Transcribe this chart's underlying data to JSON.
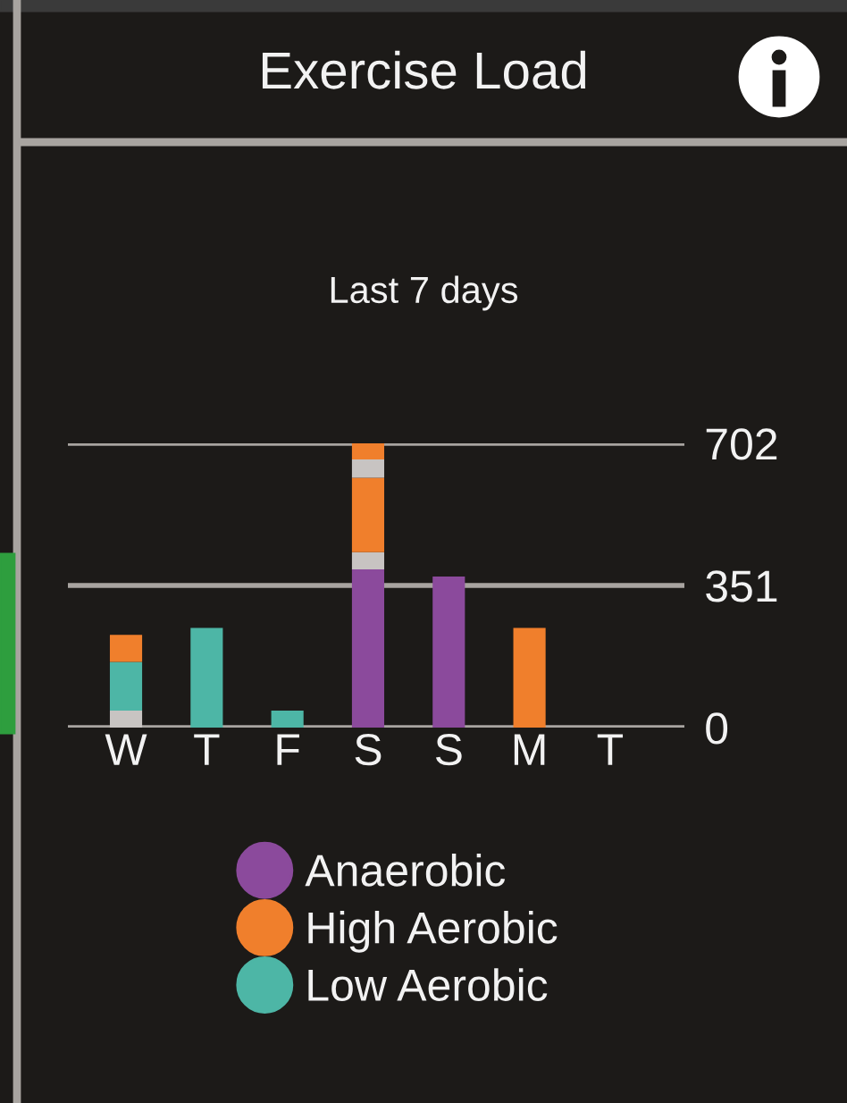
{
  "chart_data": {
    "type": "bar",
    "title": "Exercise Load",
    "subtitle": "Last 7 days",
    "categories": [
      "W",
      "T",
      "F",
      "S",
      "S",
      "M",
      "T"
    ],
    "stacked": true,
    "series": [
      {
        "name": "Anaerobic",
        "color": "#8b4a9c",
        "values": [
          0,
          0,
          0,
          391,
          373,
          0,
          0
        ]
      },
      {
        "color": "#c8c4c2",
        "values": [
          42,
          0,
          0,
          42,
          0,
          0,
          0
        ]
      },
      {
        "color": "#4db6a6",
        "values": [
          120,
          0,
          0,
          0,
          0,
          0,
          0
        ]
      },
      {
        "name": "High Aerobic",
        "color": "#f07f2c",
        "values": [
          67,
          0,
          0,
          184,
          0,
          246,
          0
        ]
      },
      {
        "color": "#c8c4c2",
        "values": [
          0,
          0,
          0,
          45,
          0,
          0,
          0
        ]
      },
      {
        "color": "#f07f2c",
        "values": [
          0,
          0,
          0,
          40,
          0,
          0,
          0
        ]
      },
      {
        "name": "Low Aerobic",
        "color": "#4db6a6",
        "values": [
          0,
          246,
          42,
          0,
          0,
          0,
          0
        ]
      }
    ],
    "ylim": [
      0,
      702
    ],
    "yticks": [
      0,
      351,
      702
    ],
    "grid": "y",
    "legend": "bottom"
  }
}
